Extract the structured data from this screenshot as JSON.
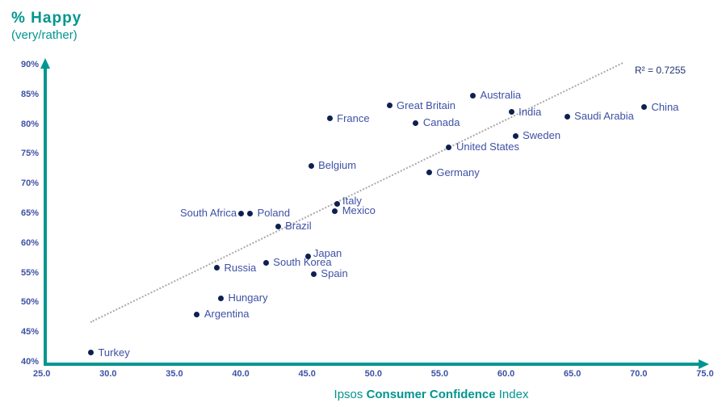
{
  "title": {
    "line1": "% Happy",
    "line2": "(very/rather)"
  },
  "xaxis_label": {
    "prefix": "Ipsos",
    "bold": "Consumer Confidence",
    "suffix": "Index"
  },
  "r_squared_label": "R² = 0.7255",
  "colors": {
    "teal_axis": "#00968F",
    "dot_navy": "#0D2050",
    "label_blue": "#3E51A4",
    "trend_gray": "#A9A9A9",
    "r2_navy": "#1F3272",
    "background": "#FFFFFF"
  },
  "chart_data": {
    "type": "scatter",
    "title": "% Happy (very/rather) vs Ipsos Consumer Confidence Index",
    "xlabel": "Ipsos Consumer Confidence Index",
    "ylabel": "% Happy (very/rather)",
    "xlim": [
      25,
      75
    ],
    "ylim": [
      40,
      90
    ],
    "x_ticks": [
      "25.0",
      "30.0",
      "35.0",
      "40.0",
      "45.0",
      "50.0",
      "55.0",
      "60.0",
      "65.0",
      "70.0",
      "75.0"
    ],
    "y_ticks": [
      "40%",
      "45%",
      "50%",
      "55%",
      "60%",
      "65%",
      "70%",
      "75%",
      "80%",
      "85%",
      "90%"
    ],
    "grid": false,
    "r_squared": 0.7255,
    "trend_line": {
      "style": "dotted",
      "x1": 28.7,
      "y1": 46.8,
      "x2": 68.8,
      "y2": 90.4
    },
    "points": [
      {
        "country": "Turkey",
        "x": 28.7,
        "y": 41.5,
        "label_side": "right"
      },
      {
        "country": "Argentina",
        "x": 36.7,
        "y": 48.0,
        "label_side": "right"
      },
      {
        "country": "Hungary",
        "x": 38.5,
        "y": 50.7,
        "label_side": "right"
      },
      {
        "country": "Russia",
        "x": 38.2,
        "y": 55.8,
        "label_side": "right"
      },
      {
        "country": "South Korea",
        "x": 41.9,
        "y": 56.7,
        "label_side": "right"
      },
      {
        "country": "Japan",
        "x": 45.1,
        "y": 57.7,
        "label_side": "above-right"
      },
      {
        "country": "Spain",
        "x": 45.5,
        "y": 54.8,
        "label_side": "right"
      },
      {
        "country": "Brazil",
        "x": 42.8,
        "y": 62.8,
        "label_side": "right"
      },
      {
        "country": "South Africa",
        "x": 40.0,
        "y": 65.0,
        "label_side": "left"
      },
      {
        "country": "Poland",
        "x": 40.7,
        "y": 65.0,
        "label_side": "right"
      },
      {
        "country": "Italy",
        "x": 47.3,
        "y": 66.5,
        "label_side": "above-right"
      },
      {
        "country": "Mexico",
        "x": 47.1,
        "y": 65.4,
        "label_side": "right"
      },
      {
        "country": "Belgium",
        "x": 45.3,
        "y": 73.0,
        "label_side": "right"
      },
      {
        "country": "Germany",
        "x": 54.2,
        "y": 71.8,
        "label_side": "right"
      },
      {
        "country": "United States",
        "x": 55.7,
        "y": 76.1,
        "label_side": "right"
      },
      {
        "country": "France",
        "x": 46.7,
        "y": 80.9,
        "label_side": "right"
      },
      {
        "country": "Canada",
        "x": 53.2,
        "y": 80.2,
        "label_side": "right"
      },
      {
        "country": "Great Britain",
        "x": 51.2,
        "y": 83.1,
        "label_side": "right"
      },
      {
        "country": "Australia",
        "x": 57.5,
        "y": 84.8,
        "label_side": "right"
      },
      {
        "country": "India",
        "x": 60.4,
        "y": 82.0,
        "label_side": "right"
      },
      {
        "country": "Sweden",
        "x": 60.7,
        "y": 78.0,
        "label_side": "right"
      },
      {
        "country": "Saudi Arabia",
        "x": 64.6,
        "y": 81.3,
        "label_side": "right"
      },
      {
        "country": "China",
        "x": 70.4,
        "y": 82.8,
        "label_side": "right"
      }
    ]
  }
}
